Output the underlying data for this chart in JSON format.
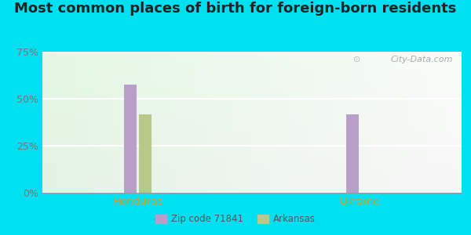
{
  "title": "Most common places of birth for foreign-born residents",
  "categories": [
    "Honduras",
    "Ukraine"
  ],
  "zip_values": [
    0.575,
    0.415
  ],
  "arkansas_values": [
    0.415,
    0.0
  ],
  "zip_color": "#b89ec8",
  "arkansas_color": "#b8c888",
  "background_outer": "#00e0f0",
  "yticks": [
    0.0,
    0.25,
    0.5,
    0.75
  ],
  "ytick_labels": [
    "0%",
    "25%",
    "50%",
    "75%"
  ],
  "xlabel_color": "#c8a030",
  "title_fontsize": 13,
  "bar_width": 0.1,
  "legend_label_zip": "Zip code 71841",
  "legend_label_arkansas": "Arkansas",
  "watermark": "City-Data.com"
}
